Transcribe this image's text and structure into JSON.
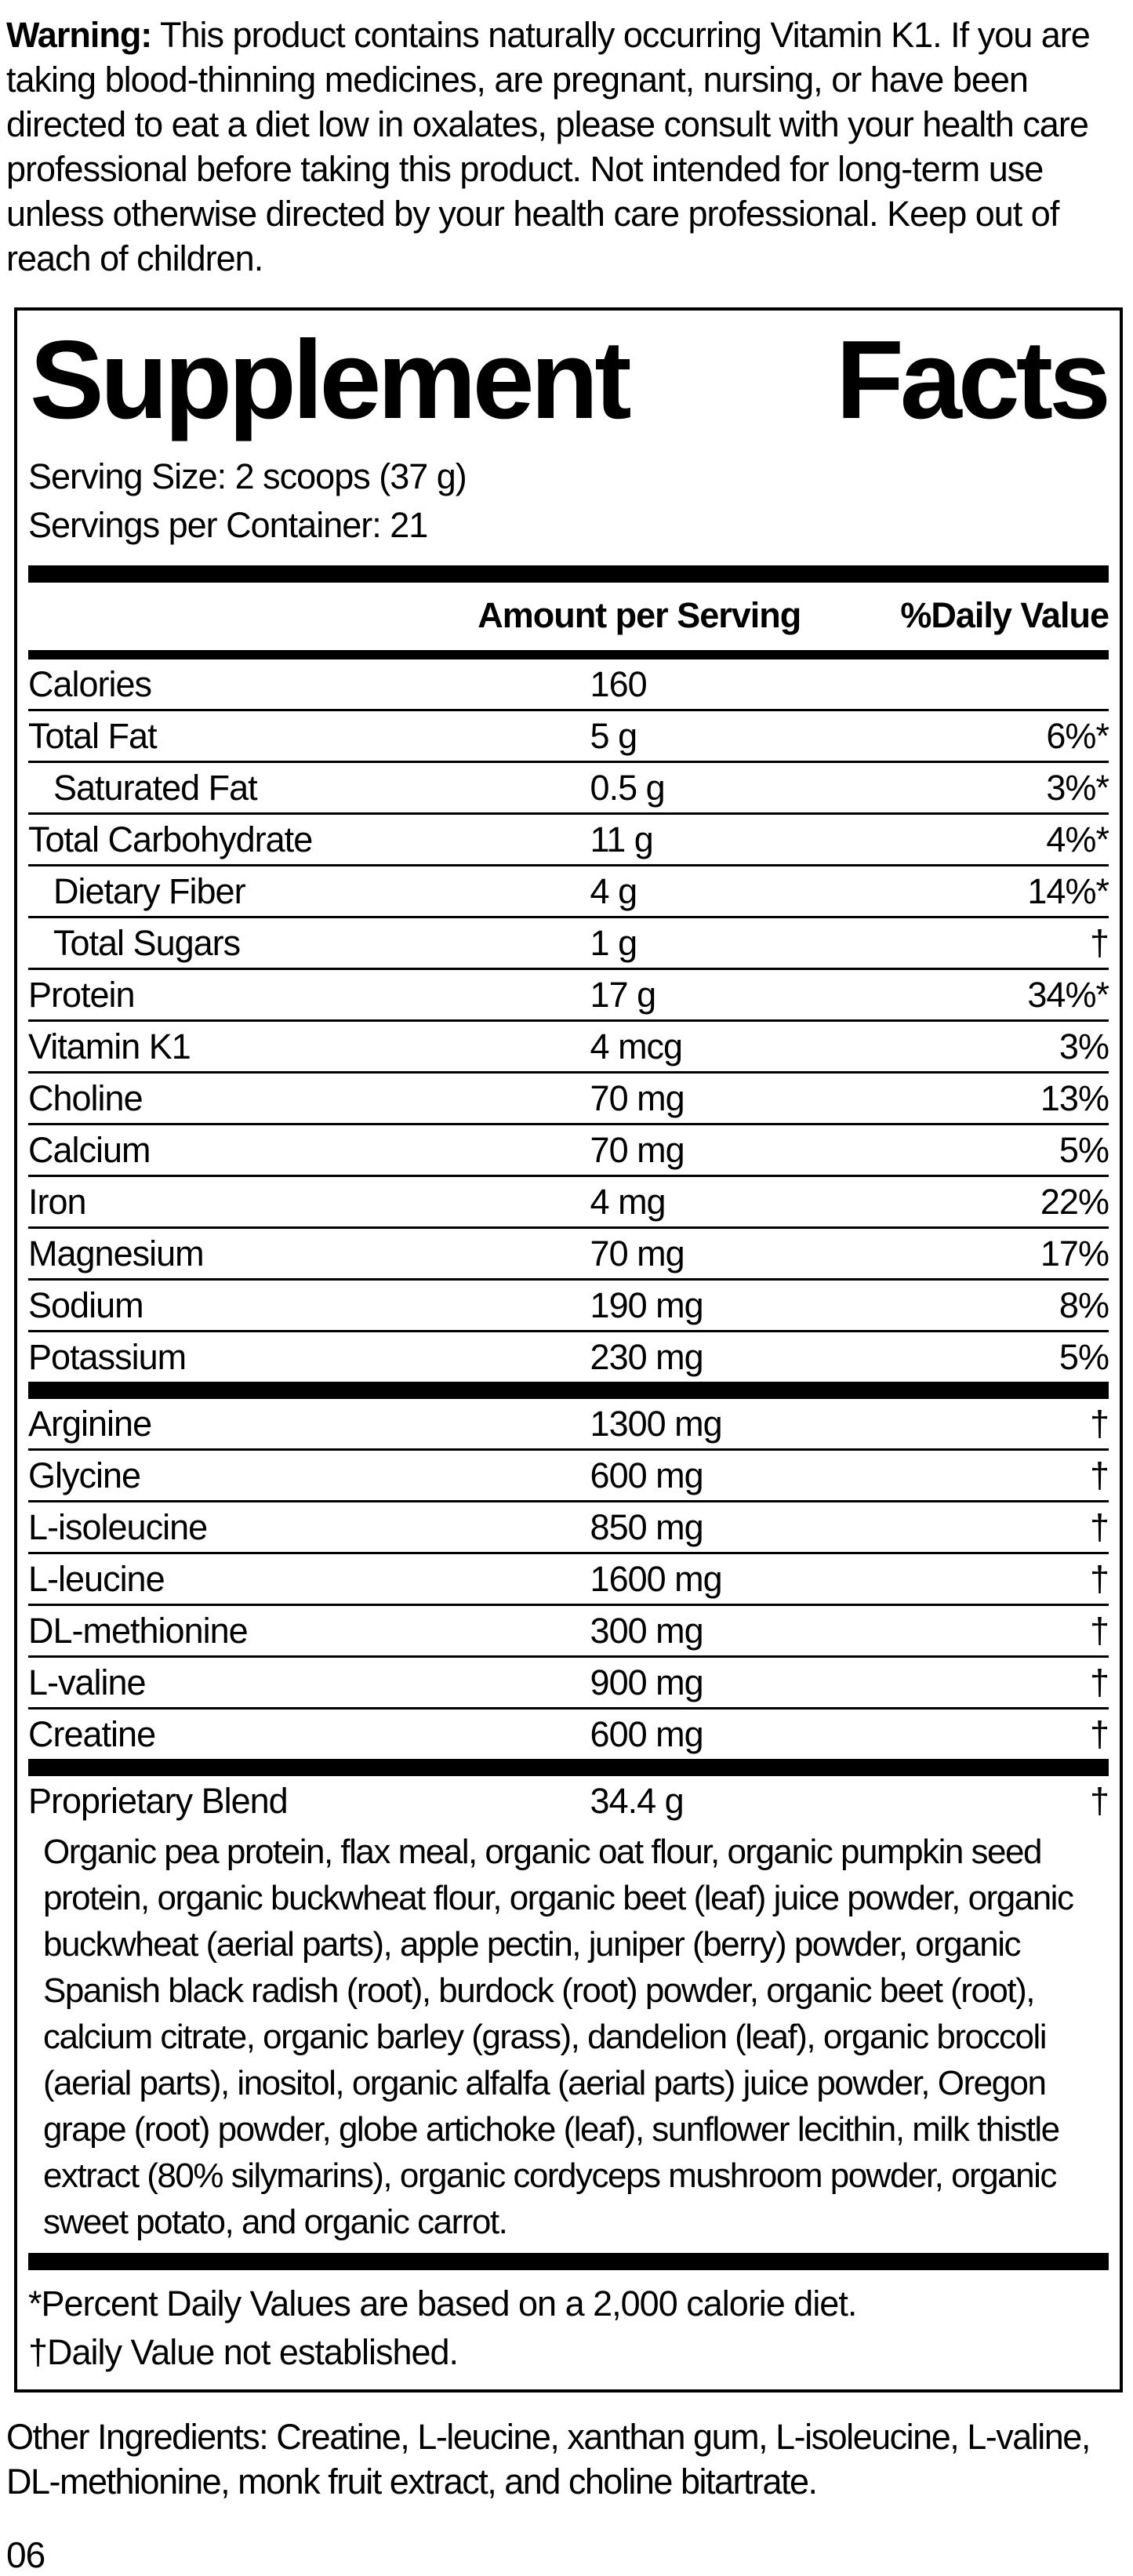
{
  "colors": {
    "ink": "#000000",
    "paper": "#ffffff"
  },
  "warning": {
    "label": "Warning:",
    "text": "This product contains naturally occurring Vitamin K1. If you are taking blood-thinning medicines, are pregnant, nursing, or have been directed to eat a diet low in oxalates, please consult with your health care professional before taking this product. Not intended for long-term use unless otherwise directed by your health care professional. Keep out of reach of children."
  },
  "panel": {
    "title_left": "Supplement",
    "title_right": "Facts",
    "serving_size": "Serving Size: 2 scoops (37 g)",
    "servings_per_container": "Servings per Container: 21",
    "columns": {
      "amount": "Amount per Serving",
      "dv": "%Daily Value"
    },
    "rows": [
      {
        "name": "Calories",
        "amount": "160",
        "dv": "",
        "indent": false
      },
      {
        "name": "Total Fat",
        "amount": "5 g",
        "dv": "6%*",
        "indent": false
      },
      {
        "name": "Saturated Fat",
        "amount": "0.5 g",
        "dv": "3%*",
        "indent": true
      },
      {
        "name": "Total Carbohydrate",
        "amount": "11 g",
        "dv": "4%*",
        "indent": false
      },
      {
        "name": "Dietary Fiber",
        "amount": "4 g",
        "dv": "14%*",
        "indent": true
      },
      {
        "name": "Total Sugars",
        "amount": "1 g",
        "dv": "†",
        "indent": true
      },
      {
        "name": "Protein",
        "amount": "17 g",
        "dv": "34%*",
        "indent": false
      },
      {
        "name": "Vitamin K1",
        "amount": "4 mcg",
        "dv": "3%",
        "indent": false
      },
      {
        "name": "Choline",
        "amount": "70 mg",
        "dv": "13%",
        "indent": false
      },
      {
        "name": "Calcium",
        "amount": "70 mg",
        "dv": "5%",
        "indent": false
      },
      {
        "name": "Iron",
        "amount": "4 mg",
        "dv": "22%",
        "indent": false
      },
      {
        "name": "Magnesium",
        "amount": "70 mg",
        "dv": "17%",
        "indent": false
      },
      {
        "name": "Sodium",
        "amount": "190 mg",
        "dv": "8%",
        "indent": false
      },
      {
        "name": "Potassium",
        "amount": "230 mg",
        "dv": "5%",
        "indent": false
      }
    ],
    "amino_rows": [
      {
        "name": "Arginine",
        "amount": "1300 mg",
        "dv": "†",
        "indent": false
      },
      {
        "name": "Glycine",
        "amount": "600 mg",
        "dv": "†",
        "indent": false
      },
      {
        "name": "L-isoleucine",
        "amount": "850 mg",
        "dv": "†",
        "indent": false
      },
      {
        "name": "L-leucine",
        "amount": "1600 mg",
        "dv": "†",
        "indent": false
      },
      {
        "name": "DL-methionine",
        "amount": "300 mg",
        "dv": "†",
        "indent": false
      },
      {
        "name": "L-valine",
        "amount": "900 mg",
        "dv": "†",
        "indent": false
      },
      {
        "name": "Creatine",
        "amount": "600 mg",
        "dv": "†",
        "indent": false
      }
    ],
    "blend": {
      "name": "Proprietary Blend",
      "amount": "34.4 g",
      "dv": "†",
      "description": "Organic pea protein, flax meal, organic oat flour, organic pumpkin seed protein, organic buckwheat flour, organic beet (leaf) juice powder, organic buckwheat (aerial parts), apple pectin, juniper (berry) powder, organic Spanish black radish (root), burdock (root) powder, organic beet (root), calcium citrate, organic barley (grass), dandelion (leaf), organic broccoli (aerial parts), inositol, organic alfalfa (aerial parts) juice powder, Oregon grape (root) powder, globe artichoke (leaf), sunflower lecithin, milk thistle extract (80% silymarins), organic cordyceps mushroom powder, organic sweet potato, and organic carrot."
    },
    "footnotes": [
      "*Percent Daily Values are based on a 2,000 calorie diet.",
      "†Daily Value not established."
    ]
  },
  "other_ingredients": "Other Ingredients: Creatine, L-leucine, xanthan gum, L-isoleucine, L-valine, DL-methionine, monk fruit extract, and choline bitartrate.",
  "page_number": "06"
}
